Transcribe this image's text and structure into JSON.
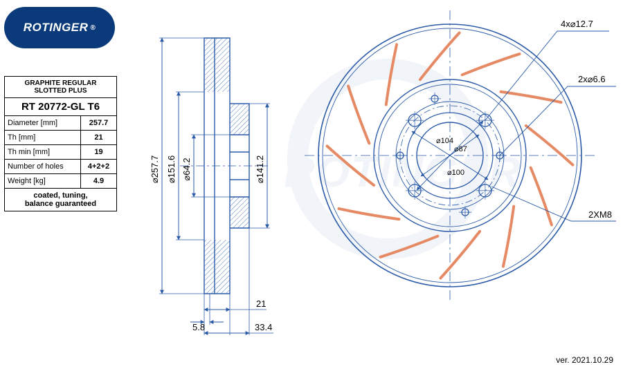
{
  "brand": "ROTINGER",
  "brand_reg": "®",
  "subtitle": "GRAPHITE REGULAR SLOTTED PLUS",
  "part_no": "RT 20772-GL T6",
  "specs": [
    {
      "label": "Diameter [mm]",
      "value": "257.7"
    },
    {
      "label": "Th [mm]",
      "value": "21"
    },
    {
      "label": "Th min [mm]",
      "value": "19"
    },
    {
      "label": "Number of holes",
      "value": "4+2+2"
    },
    {
      "label": "Weight [kg]",
      "value": "4.9"
    }
  ],
  "footer": "coated, tuning,\nbalance guaranteed",
  "version": "ver. 2021.10.29",
  "side_view": {
    "dims": {
      "d1": "⌀257.7",
      "d2": "⌀151.6",
      "d3": "⌀64.2",
      "d4": "⌀141.2",
      "t1": "5.8",
      "t2": "21",
      "t3": "33.4"
    }
  },
  "face_view": {
    "callouts": {
      "c1": "4x⌀12.7",
      "c2": "2x⌀6.6",
      "c3": "2XM8",
      "c4": "⌀104",
      "c5": "⌀87",
      "c6": "⌀100"
    }
  },
  "colors": {
    "stroke": "#2a5aa8",
    "slot": "#e58a64",
    "thin": 0.9,
    "med": 1.4,
    "dim": 1.0,
    "watermark": "#eef2f7"
  }
}
